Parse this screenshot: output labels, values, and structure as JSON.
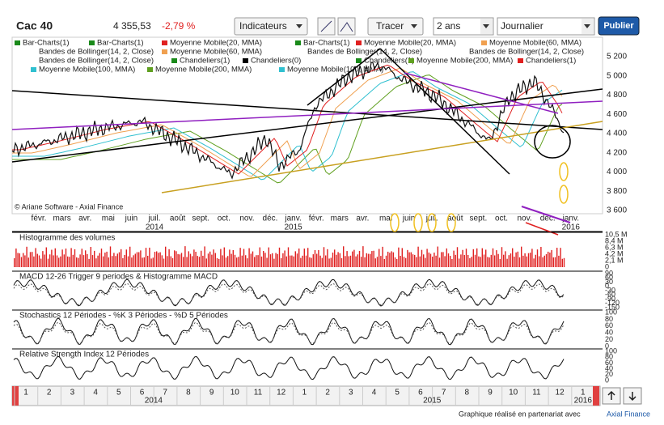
{
  "toolbar": {
    "symbol": "Cac 40",
    "price": "4 355,53",
    "change": "-2,79 %",
    "indicators": "Indicateurs",
    "draw": "Tracer",
    "period": "2 ans",
    "interval": "Journalier",
    "publish": "Publier"
  },
  "legend": [
    [
      {
        "label": "Bar-Charts(1)",
        "color": "#1a8a1a"
      },
      {
        "label": "Bar-Charts(1)",
        "color": "#1a8a1a"
      },
      {
        "label": "Moyenne Mobile(20, MMA)",
        "color": "#e02020"
      },
      {
        "label": "Bar-Charts(1)",
        "color": "#1a8a1a"
      },
      {
        "label": "Moyenne Mobile(20, MMA)",
        "color": "#e02020"
      },
      {
        "label": "Moyenne Mobile(60, MMA)",
        "color": "#f0a050"
      }
    ],
    [
      {
        "label": "Bandes de Bollinger(14, 2, Close)"
      },
      {
        "label": "Moyenne Mobile(60, MMA)",
        "color": "#f0a050"
      },
      {
        "label": "Bandes de Bollinger(14, 2, Close)"
      },
      {
        "label": "Bandes de Bollinger(14, 2, Close)"
      }
    ],
    [
      {
        "label": "Bandes de Bollinger(14, 2, Close)"
      },
      {
        "label": "Chandeliers(1)",
        "color": "#1a8a1a"
      },
      {
        "label": "Chandeliers(0)",
        "color": "#000000"
      },
      {
        "label": "Chandeliers(1)",
        "color": "#1a8a1a"
      },
      {
        "label": "Moyenne Mobile(200, MMA)",
        "color": "#60a020"
      },
      {
        "label": "Chandeliers(1)",
        "color": "#e02020"
      }
    ],
    [
      {
        "label": "Moyenne Mobile(100, MMA)",
        "color": "#30c0d0"
      },
      {
        "label": "Moyenne Mobile(200, MMA)",
        "color": "#60a020"
      },
      {
        "label": "Moyenne Mobile(100, MMA)",
        "color": "#30c0d0"
      }
    ]
  ],
  "copyright": "© Ariane Software - Axial Finance",
  "price_axis": [
    "5 200",
    "5 000",
    "4 800",
    "4 600",
    "4 400",
    "4 200",
    "4 000",
    "3 800",
    "3 600"
  ],
  "months": [
    "févr.",
    "mars",
    "avr.",
    "mai",
    "juin",
    "juil.",
    "août",
    "sept.",
    "oct.",
    "nov.",
    "déc.",
    "janv.",
    "févr.",
    "mars",
    "avr.",
    "mai",
    "juin",
    "juil.",
    "août",
    "sept.",
    "oct.",
    "nov.",
    "déc.",
    "janv."
  ],
  "years": [
    "2014",
    "2015",
    "2016"
  ],
  "panels": [
    {
      "title": "Histogramme des volumes",
      "axis": [
        "10,5 M",
        "8,4 M",
        "6,3 M",
        "4,2 M",
        "2,1 M",
        "0"
      ]
    },
    {
      "title": "MACD 12-26   Trigger 9 periodes & Histogramme MACD",
      "axis": [
        "90",
        "60",
        "30",
        "0",
        "-30",
        "-60",
        "-90",
        "-120",
        "-150"
      ]
    },
    {
      "title": "Stochastics 12 Périodes - %K 3 Périodes - %D 5 Périodes",
      "axis": [
        "100",
        "80",
        "60",
        "40",
        "20",
        "0"
      ]
    },
    {
      "title": "Relative Strength Index 12 Périodes",
      "axis": [
        "100",
        "80",
        "60",
        "40",
        "20",
        "0"
      ]
    }
  ],
  "navigator": {
    "months": [
      "1",
      "2",
      "3",
      "4",
      "5",
      "6",
      "7",
      "8",
      "9",
      "10",
      "11",
      "12",
      "1",
      "2",
      "3",
      "4",
      "5",
      "6",
      "7",
      "8",
      "9",
      "10",
      "11",
      "12",
      "1"
    ],
    "years": [
      "2014",
      "2015",
      "2016"
    ]
  },
  "footer": {
    "text": "Graphique réalisé en partenariat avec",
    "link": "Axial Finance"
  }
}
